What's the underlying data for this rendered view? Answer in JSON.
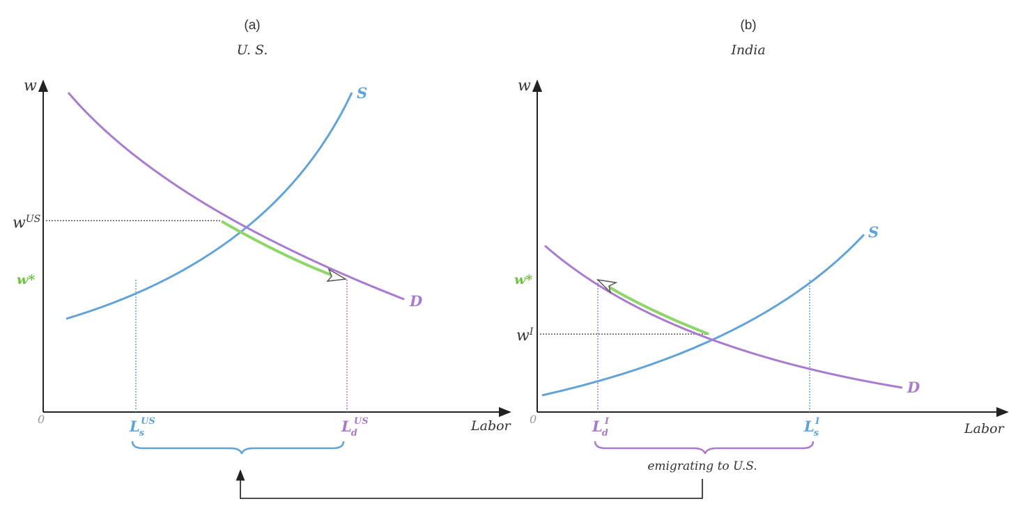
{
  "colors": {
    "supply": "#5fa3d9",
    "demand": "#a97bd0",
    "world_wage": "#8fd66a",
    "axis": "#222222",
    "guide": "#555555",
    "text": "#333333"
  },
  "panel_a": {
    "letter": "(a)",
    "country": "U. S.",
    "y_axis_label": "w",
    "x_axis_label": "Labor",
    "origin_label": "0",
    "supply_label": "S",
    "demand_label": "D",
    "wage_domestic": {
      "base": "w",
      "sup": "US"
    },
    "wage_world": "w*",
    "labor_supplied": {
      "base": "L",
      "sub": "s",
      "sup": "US"
    },
    "labor_demanded": {
      "base": "L",
      "sub": "d",
      "sup": "US"
    }
  },
  "panel_b": {
    "letter": "(b)",
    "country": "India",
    "y_axis_label": "w",
    "x_axis_label": "Labor",
    "origin_label": "0",
    "supply_label": "S",
    "demand_label": "D",
    "wage_domestic": {
      "base": "w",
      "sup": "I"
    },
    "wage_world": "w*",
    "labor_demanded": {
      "base": "L",
      "sub": "d",
      "sup": "I"
    },
    "labor_supplied": {
      "base": "L",
      "sub": "s",
      "sup": "I"
    },
    "brace_label": "emigrating to U.S."
  }
}
